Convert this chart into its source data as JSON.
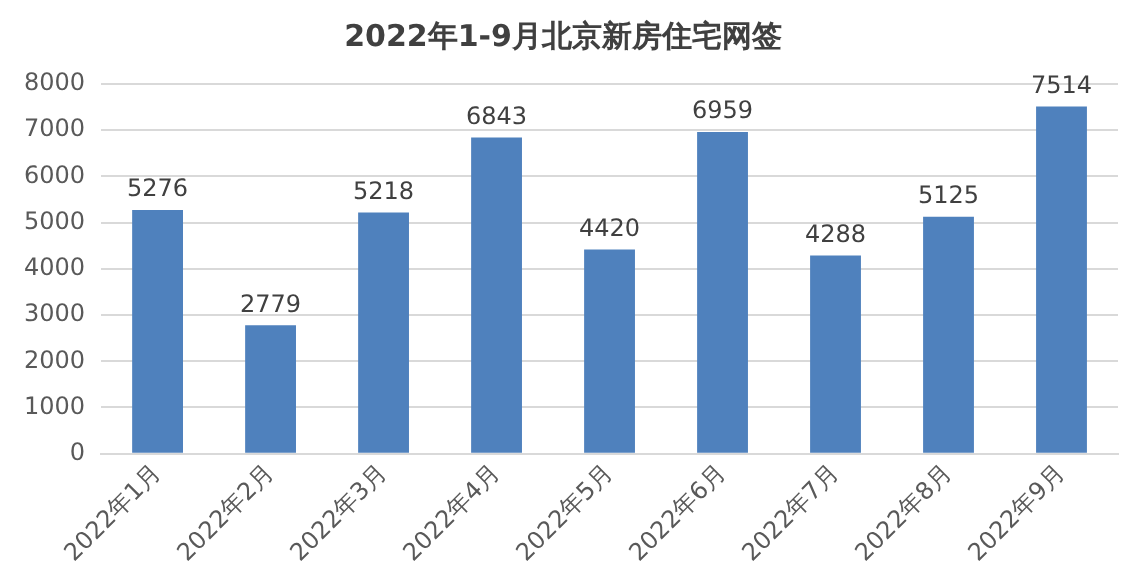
{
  "chart_data": {
    "type": "bar",
    "title": "2022年1-9月北京新房住宅网签",
    "categories": [
      "2022年1月",
      "2022年2月",
      "2022年3月",
      "2022年4月",
      "2022年5月",
      "2022年6月",
      "2022年7月",
      "2022年8月",
      "2022年9月"
    ],
    "values": [
      5276,
      2779,
      5218,
      6843,
      4420,
      6959,
      4288,
      5125,
      7514
    ],
    "color": "#4f81bd",
    "ylim": [
      0,
      8000
    ],
    "yticks": [
      0,
      1000,
      2000,
      3000,
      4000,
      5000,
      6000,
      7000,
      8000
    ],
    "grid": "y",
    "data_labels": true,
    "legend": false
  }
}
